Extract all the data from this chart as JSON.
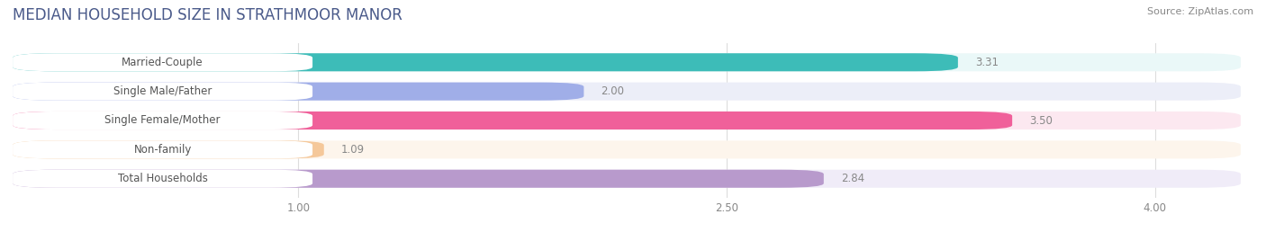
{
  "title": "MEDIAN HOUSEHOLD SIZE IN STRATHMOOR MANOR",
  "source": "Source: ZipAtlas.com",
  "categories": [
    "Married-Couple",
    "Single Male/Father",
    "Single Female/Mother",
    "Non-family",
    "Total Households"
  ],
  "values": [
    3.31,
    2.0,
    3.5,
    1.09,
    2.84
  ],
  "bar_colors": [
    "#3dbcb8",
    "#a0aee8",
    "#f0609a",
    "#f5c89a",
    "#b89acc"
  ],
  "bar_bg_colors": [
    "#eaf8f8",
    "#eceef8",
    "#fce8f0",
    "#fdf5ec",
    "#f0ecf8"
  ],
  "xlim_data": [
    0.0,
    4.3
  ],
  "data_min": 1.0,
  "data_max": 4.0,
  "xticks": [
    1.0,
    2.5,
    4.0
  ],
  "title_fontsize": 12,
  "label_fontsize": 8.5,
  "value_fontsize": 8.5,
  "source_fontsize": 8,
  "bar_height": 0.62,
  "title_color": "#4a5a8a",
  "value_color": "#888888",
  "label_color": "#555555",
  "bg_color": "#ffffff",
  "grid_color": "#dddddd"
}
